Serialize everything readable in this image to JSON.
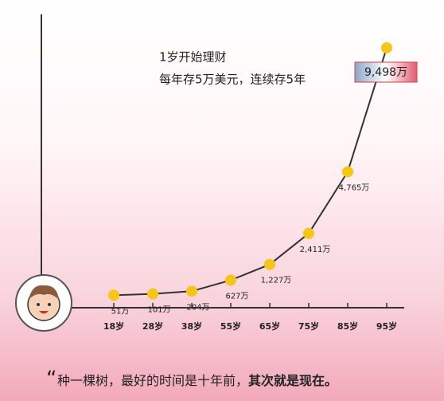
{
  "chart_data": {
    "type": "line",
    "annotations": [
      "1岁开始理财",
      "每年存5万美元，连续存5年"
    ],
    "categories": [
      "18岁",
      "28岁",
      "38岁",
      "55岁",
      "65岁",
      "75岁",
      "85岁",
      "95岁"
    ],
    "values": [
      51,
      101,
      204,
      627,
      1227,
      2411,
      4765,
      9498
    ],
    "value_labels": [
      "51万",
      "101万",
      "204万",
      "627万",
      "1,227万",
      "2,411万",
      "4,765万",
      "9,498万"
    ],
    "color": "#333333",
    "marker_color": "#f5c518"
  },
  "quote": {
    "mark": "“",
    "text": "种一棵树，最好的时间是十年前，",
    "emphasis": "其次就是现在。"
  }
}
